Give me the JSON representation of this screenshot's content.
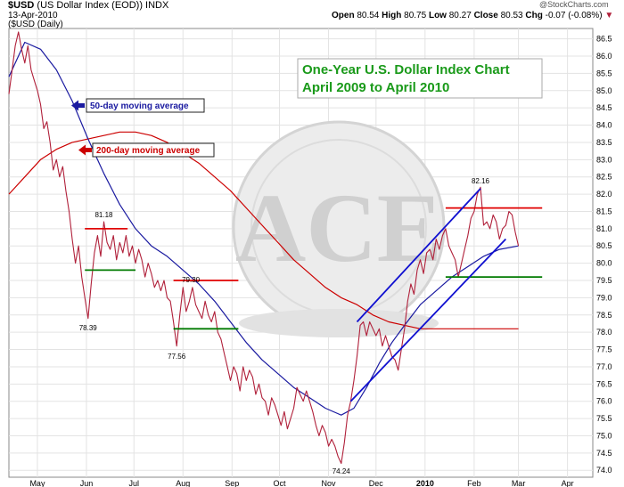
{
  "header": {
    "symbol": "$USD",
    "name": "(US Dollar Index (EOD))",
    "exchange": "INDX",
    "date": "13-Apr-2010",
    "period": "($USD (Daily)",
    "open_label": "Open",
    "open": "80.54",
    "high_label": "High",
    "high": "80.75",
    "low_label": "Low",
    "low": "80.27",
    "close_label": "Close",
    "close": "80.53",
    "chg_label": "Chg",
    "chg": "-0.07 (-0.08%)",
    "source": "@StockCharts.com"
  },
  "watermark": "ACE",
  "chart_data": {
    "type": "line",
    "title": "One-Year U.S. Dollar Index Chart\nApril 2009 to April 2010",
    "title_lines": [
      "One-Year U.S. Dollar Index Chart",
      "April 2009 to April 2010"
    ],
    "y_ticks": [
      "86.5",
      "86.0",
      "85.5",
      "85.0",
      "84.5",
      "84.0",
      "83.5",
      "83.0",
      "82.5",
      "82.0",
      "81.5",
      "81.0",
      "80.5",
      "80.0",
      "79.5",
      "79.0",
      "78.5",
      "78.0",
      "77.5",
      "77.0",
      "76.5",
      "76.0",
      "75.5",
      "75.0",
      "74.5",
      "74.0"
    ],
    "ylim": [
      73.8,
      86.8
    ],
    "x_ticks": [
      "May",
      "Jun",
      "Jul",
      "Aug",
      "Sep",
      "Oct",
      "Nov",
      "Dec",
      "2010",
      "Feb",
      "Mar",
      "Apr"
    ],
    "x_tick_days": [
      18,
      49,
      79,
      110,
      141,
      171,
      202,
      232,
      263,
      294,
      322,
      353
    ],
    "x_range_days": [
      0,
      369
    ],
    "legend": [
      {
        "label": "50-day moving average",
        "color": "#1a1aa0"
      },
      {
        "label": "200-day moving average",
        "color": "#cc0000"
      }
    ],
    "series": [
      {
        "name": "US Dollar Index",
        "color": "#b0203a",
        "points": [
          [
            0,
            84.9
          ],
          [
            2,
            85.6
          ],
          [
            4,
            86.3
          ],
          [
            6,
            86.7
          ],
          [
            8,
            86.2
          ],
          [
            10,
            85.8
          ],
          [
            12,
            86.3
          ],
          [
            14,
            85.6
          ],
          [
            16,
            85.3
          ],
          [
            18,
            85.0
          ],
          [
            20,
            84.6
          ],
          [
            22,
            83.9
          ],
          [
            24,
            84.1
          ],
          [
            26,
            83.5
          ],
          [
            28,
            82.7
          ],
          [
            30,
            83.0
          ],
          [
            32,
            82.5
          ],
          [
            34,
            82.8
          ],
          [
            36,
            82.1
          ],
          [
            38,
            81.5
          ],
          [
            40,
            80.7
          ],
          [
            42,
            80.0
          ],
          [
            44,
            80.5
          ],
          [
            46,
            79.6
          ],
          [
            48,
            79.0
          ],
          [
            50,
            78.4
          ],
          [
            52,
            79.4
          ],
          [
            54,
            80.3
          ],
          [
            56,
            80.8
          ],
          [
            58,
            80.2
          ],
          [
            60,
            81.2
          ],
          [
            62,
            80.6
          ],
          [
            64,
            80.4
          ],
          [
            66,
            80.8
          ],
          [
            68,
            80.1
          ],
          [
            70,
            80.6
          ],
          [
            72,
            80.3
          ],
          [
            74,
            80.8
          ],
          [
            76,
            80.2
          ],
          [
            78,
            80.5
          ],
          [
            80,
            80.0
          ],
          [
            82,
            80.4
          ],
          [
            84,
            80.1
          ],
          [
            86,
            79.6
          ],
          [
            88,
            80.0
          ],
          [
            90,
            79.7
          ],
          [
            92,
            79.3
          ],
          [
            94,
            79.5
          ],
          [
            96,
            79.2
          ],
          [
            98,
            79.5
          ],
          [
            100,
            79.0
          ],
          [
            102,
            78.9
          ],
          [
            104,
            78.3
          ],
          [
            106,
            77.6
          ],
          [
            108,
            78.5
          ],
          [
            110,
            79.3
          ],
          [
            112,
            78.6
          ],
          [
            114,
            78.9
          ],
          [
            116,
            79.3
          ],
          [
            118,
            78.8
          ],
          [
            120,
            78.6
          ],
          [
            122,
            78.4
          ],
          [
            124,
            78.9
          ],
          [
            126,
            78.5
          ],
          [
            128,
            78.3
          ],
          [
            130,
            78.6
          ],
          [
            132,
            78.0
          ],
          [
            134,
            77.8
          ],
          [
            136,
            77.4
          ],
          [
            138,
            77.0
          ],
          [
            140,
            76.6
          ],
          [
            142,
            77.0
          ],
          [
            144,
            76.8
          ],
          [
            146,
            76.3
          ],
          [
            148,
            77.0
          ],
          [
            150,
            76.6
          ],
          [
            152,
            76.9
          ],
          [
            154,
            76.7
          ],
          [
            156,
            76.2
          ],
          [
            158,
            76.5
          ],
          [
            160,
            76.1
          ],
          [
            162,
            76.0
          ],
          [
            164,
            75.6
          ],
          [
            166,
            76.1
          ],
          [
            168,
            75.9
          ],
          [
            170,
            75.6
          ],
          [
            172,
            75.3
          ],
          [
            174,
            75.7
          ],
          [
            176,
            75.2
          ],
          [
            178,
            75.5
          ],
          [
            180,
            75.8
          ],
          [
            182,
            76.4
          ],
          [
            184,
            76.2
          ],
          [
            186,
            76.0
          ],
          [
            188,
            76.3
          ],
          [
            190,
            76.0
          ],
          [
            192,
            75.7
          ],
          [
            194,
            75.3
          ],
          [
            196,
            75.0
          ],
          [
            198,
            75.3
          ],
          [
            200,
            75.1
          ],
          [
            202,
            74.7
          ],
          [
            204,
            74.9
          ],
          [
            206,
            74.7
          ],
          [
            208,
            74.4
          ],
          [
            210,
            74.2
          ],
          [
            212,
            74.8
          ],
          [
            214,
            75.6
          ],
          [
            216,
            76.0
          ],
          [
            218,
            76.6
          ],
          [
            220,
            77.3
          ],
          [
            222,
            78.2
          ],
          [
            224,
            78.3
          ],
          [
            226,
            77.9
          ],
          [
            228,
            78.3
          ],
          [
            230,
            78.1
          ],
          [
            232,
            77.9
          ],
          [
            234,
            78.1
          ],
          [
            236,
            77.6
          ],
          [
            238,
            77.9
          ],
          [
            240,
            77.6
          ],
          [
            242,
            77.3
          ],
          [
            244,
            77.2
          ],
          [
            246,
            76.9
          ],
          [
            248,
            77.5
          ],
          [
            250,
            78.1
          ],
          [
            252,
            78.9
          ],
          [
            254,
            79.4
          ],
          [
            256,
            79.1
          ],
          [
            258,
            79.8
          ],
          [
            260,
            80.1
          ],
          [
            262,
            79.7
          ],
          [
            264,
            80.3
          ],
          [
            266,
            80.4
          ],
          [
            268,
            80.1
          ],
          [
            270,
            80.7
          ],
          [
            272,
            80.4
          ],
          [
            274,
            80.8
          ],
          [
            276,
            81.0
          ],
          [
            278,
            80.5
          ],
          [
            280,
            80.3
          ],
          [
            282,
            80.1
          ],
          [
            284,
            79.6
          ],
          [
            286,
            80.0
          ],
          [
            288,
            80.4
          ],
          [
            290,
            80.8
          ],
          [
            292,
            81.3
          ],
          [
            294,
            81.5
          ],
          [
            296,
            82.0
          ],
          [
            298,
            82.2
          ],
          [
            300,
            81.1
          ],
          [
            302,
            81.2
          ],
          [
            304,
            81.0
          ],
          [
            306,
            81.4
          ],
          [
            308,
            81.2
          ],
          [
            310,
            80.7
          ],
          [
            312,
            81.0
          ],
          [
            314,
            81.1
          ],
          [
            316,
            81.5
          ],
          [
            318,
            81.4
          ],
          [
            320,
            80.9
          ],
          [
            322,
            80.5
          ]
        ]
      },
      {
        "name": "50-day moving average",
        "color": "#1a1aa0",
        "points": [
          [
            0,
            85.4
          ],
          [
            10,
            86.4
          ],
          [
            20,
            86.2
          ],
          [
            30,
            85.6
          ],
          [
            40,
            84.7
          ],
          [
            50,
            83.6
          ],
          [
            60,
            82.6
          ],
          [
            70,
            81.7
          ],
          [
            80,
            81.0
          ],
          [
            90,
            80.5
          ],
          [
            100,
            80.2
          ],
          [
            110,
            79.8
          ],
          [
            120,
            79.4
          ],
          [
            130,
            78.9
          ],
          [
            140,
            78.3
          ],
          [
            150,
            77.7
          ],
          [
            160,
            77.2
          ],
          [
            170,
            76.8
          ],
          [
            180,
            76.4
          ],
          [
            190,
            76.1
          ],
          [
            200,
            75.8
          ],
          [
            210,
            75.6
          ],
          [
            218,
            75.8
          ],
          [
            226,
            76.4
          ],
          [
            234,
            77.1
          ],
          [
            242,
            77.7
          ],
          [
            250,
            78.2
          ],
          [
            260,
            78.8
          ],
          [
            270,
            79.2
          ],
          [
            280,
            79.6
          ],
          [
            290,
            79.9
          ],
          [
            300,
            80.2
          ],
          [
            310,
            80.4
          ],
          [
            322,
            80.5
          ]
        ]
      },
      {
        "name": "200-day moving average",
        "color": "#cc0000",
        "points": [
          [
            0,
            82.0
          ],
          [
            10,
            82.5
          ],
          [
            20,
            83.0
          ],
          [
            30,
            83.3
          ],
          [
            40,
            83.5
          ],
          [
            50,
            83.6
          ],
          [
            60,
            83.7
          ],
          [
            70,
            83.8
          ],
          [
            80,
            83.8
          ],
          [
            90,
            83.7
          ],
          [
            100,
            83.5
          ],
          [
            110,
            83.2
          ],
          [
            120,
            82.9
          ],
          [
            130,
            82.5
          ],
          [
            140,
            82.1
          ],
          [
            150,
            81.6
          ],
          [
            160,
            81.1
          ],
          [
            170,
            80.6
          ],
          [
            180,
            80.1
          ],
          [
            190,
            79.7
          ],
          [
            200,
            79.3
          ],
          [
            210,
            79.0
          ],
          [
            220,
            78.8
          ],
          [
            230,
            78.5
          ],
          [
            240,
            78.3
          ],
          [
            250,
            78.2
          ],
          [
            260,
            78.1
          ],
          [
            270,
            78.1
          ],
          [
            280,
            78.1
          ],
          [
            300,
            78.1
          ],
          [
            322,
            78.1
          ]
        ]
      }
    ],
    "annotations": [
      {
        "label": "81.18",
        "x": 60,
        "y": 81.18
      },
      {
        "label": "78.39",
        "x": 50,
        "y": 78.39
      },
      {
        "label": "79.30",
        "x": 115,
        "y": 79.3
      },
      {
        "label": "77.56",
        "x": 106,
        "y": 77.56
      },
      {
        "label": "74.24",
        "x": 210,
        "y": 74.24
      },
      {
        "label": "82.16",
        "x": 298,
        "y": 82.16
      }
    ],
    "support_resistance_lines": [
      {
        "color": "#e00000",
        "x1": 48,
        "x2": 75,
        "y": 81.0
      },
      {
        "color": "#007a00",
        "x1": 48,
        "x2": 80,
        "y": 79.8
      },
      {
        "color": "#e00000",
        "x1": 104,
        "x2": 145,
        "y": 79.5
      },
      {
        "color": "#007a00",
        "x1": 104,
        "x2": 145,
        "y": 78.1
      },
      {
        "color": "#e00000",
        "x1": 276,
        "x2": 337,
        "y": 81.6
      },
      {
        "color": "#007a00",
        "x1": 276,
        "x2": 337,
        "y": 79.6
      }
    ],
    "channel_lines": [
      {
        "color": "#1010d0",
        "x1": 220,
        "y1": 78.3,
        "x2": 298,
        "y2": 82.16
      },
      {
        "color": "#1010d0",
        "x1": 216,
        "y1": 76.0,
        "x2": 314,
        "y2": 80.7
      }
    ]
  }
}
